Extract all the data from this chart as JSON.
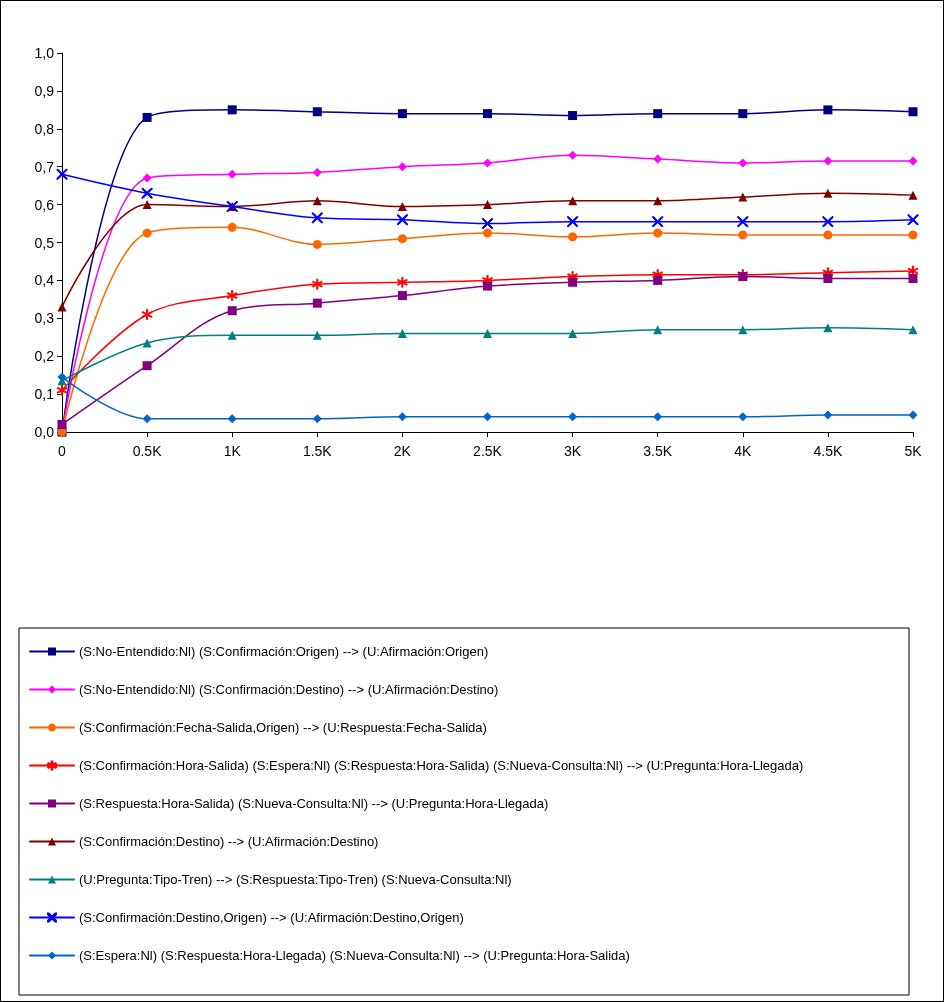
{
  "chart_data": {
    "type": "line",
    "categories": [
      "0",
      "0.5K",
      "1K",
      "1.5K",
      "2K",
      "2.5K",
      "3K",
      "3.5K",
      "4K",
      "4.5K",
      "5K"
    ],
    "ylim": [
      0,
      1
    ],
    "yticks": [
      {
        "value": 0,
        "label": "0,0"
      },
      {
        "value": 0.1,
        "label": "0,1"
      },
      {
        "value": 0.2,
        "label": "0,2"
      },
      {
        "value": 0.3,
        "label": "0,3"
      },
      {
        "value": 0.4,
        "label": "0,4"
      },
      {
        "value": 0.5,
        "label": "0,5"
      },
      {
        "value": 0.6,
        "label": "0,6"
      },
      {
        "value": 0.7,
        "label": "0,7"
      },
      {
        "value": 0.8,
        "label": "0,8"
      },
      {
        "value": 0.9,
        "label": "0,9"
      },
      {
        "value": 1,
        "label": "1,0"
      }
    ],
    "grid": false,
    "legend": "bottom",
    "line_style": "solid",
    "series": [
      {
        "name": "(S:No-Entendido:Nl) (S:Confirmación:Origen) --> (U:Afirmación:Origen)",
        "color": "#000080",
        "marker": "square",
        "values": [
          0,
          0.83,
          0.85,
          0.845,
          0.84,
          0.84,
          0.835,
          0.84,
          0.84,
          0.85,
          0.845
        ]
      },
      {
        "name": "(S:No-Entendido:Nl) (S:Confirmación:Destino) --> (U:Afirmación:Destino)",
        "color": "#ff00ff",
        "marker": "diamond",
        "values": [
          0,
          0.67,
          0.68,
          0.685,
          0.7,
          0.71,
          0.73,
          0.72,
          0.71,
          0.715,
          0.715
        ]
      },
      {
        "name": "(S:Confirmación:Fecha-Salida,Origen) --> (U:Respuesta:Fecha-Salida)",
        "color": "#ff6600",
        "marker": "circle",
        "values": [
          0,
          0.525,
          0.54,
          0.495,
          0.51,
          0.525,
          0.515,
          0.525,
          0.52,
          0.52,
          0.52
        ]
      },
      {
        "name": "(S:Confirmación:Hora-Salida) (S:Espera:Nl) (S:Respuesta:Hora-Salida) (S:Nueva-Consulta:Nl) --> (U:Pregunta:Hora-Llegada)",
        "color": "#ff0000",
        "marker": "star",
        "values": [
          0.11,
          0.31,
          0.36,
          0.39,
          0.395,
          0.4,
          0.41,
          0.415,
          0.415,
          0.42,
          0.425
        ]
      },
      {
        "name": "(S:Respuesta:Hora-Salida) (S:Nueva-Consulta:Nl) --> (U:Pregunta:Hora-Llegada)",
        "color": "#800080",
        "marker": "square",
        "values": [
          0.02,
          0.175,
          0.32,
          0.34,
          0.36,
          0.385,
          0.395,
          0.4,
          0.41,
          0.405,
          0.405
        ]
      },
      {
        "name": "(S:Confirmación:Destino) --> (U:Afirmación:Destino)",
        "color": "#800000",
        "marker": "triangle",
        "values": [
          0.33,
          0.6,
          0.595,
          0.61,
          0.595,
          0.6,
          0.61,
          0.61,
          0.62,
          0.63,
          0.625
        ]
      },
      {
        "name": "(U:Pregunta:Tipo-Tren) --> (S:Respuesta:Tipo-Tren) (S:Nueva-Consulta:Nl)",
        "color": "#008080",
        "marker": "triangle",
        "values": [
          0.135,
          0.235,
          0.255,
          0.255,
          0.26,
          0.26,
          0.26,
          0.27,
          0.27,
          0.275,
          0.27
        ]
      },
      {
        "name": "(S:Confirmación:Destino,Origen) --> (U:Afirmación:Destino,Origen)",
        "color": "#0000ff",
        "marker": "cross",
        "values": [
          0.68,
          0.63,
          0.595,
          0.565,
          0.56,
          0.55,
          0.555,
          0.555,
          0.555,
          0.555,
          0.56
        ]
      },
      {
        "name": "(S:Espera:Nl) (S:Respuesta:Hora-Llegada) (S:Nueva-Consulta:Nl) --> (U:Pregunta:Hora-Salida)",
        "color": "#0066cc",
        "marker": "diamond",
        "values": [
          0.145,
          0.035,
          0.035,
          0.035,
          0.04,
          0.04,
          0.04,
          0.04,
          0.04,
          0.045,
          0.045
        ]
      }
    ]
  }
}
